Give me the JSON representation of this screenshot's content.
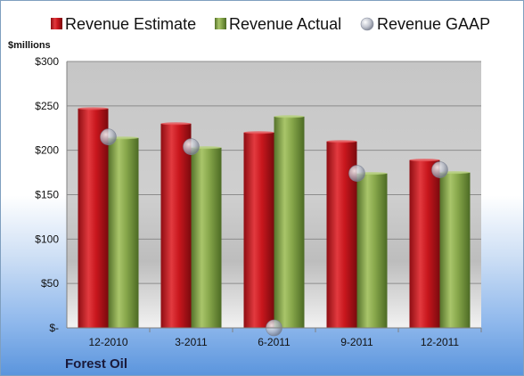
{
  "chart_data": {
    "type": "bar",
    "categories": [
      "12-2010",
      "3-2011",
      "6-2011",
      "9-2011",
      "12-2011"
    ],
    "series": [
      {
        "name": "Revenue Estimate",
        "values": [
          247,
          230,
          220,
          210,
          189
        ],
        "color": "#c0161e",
        "kind": "bar"
      },
      {
        "name": "Revenue Actual",
        "values": [
          214,
          203,
          238,
          174,
          175
        ],
        "color": "#7f9f3f",
        "kind": "bar"
      },
      {
        "name": "Revenue GAAP",
        "values": [
          215,
          204,
          0,
          174,
          178
        ],
        "color": "#a8b0c0",
        "kind": "marker"
      }
    ],
    "ylabel": "$millions",
    "ylim": [
      0,
      300
    ],
    "yticks": [
      0,
      50,
      100,
      150,
      200,
      250,
      300
    ],
    "ytick_labels": [
      "$-",
      "$50",
      "$100",
      "$150",
      "$200",
      "$250",
      "$300"
    ],
    "grid": true,
    "legend_position": "top"
  },
  "company": "Forest Oil",
  "colors": {
    "estimate": "#c0161e",
    "actual": "#7f9f3f",
    "gaap": "#a8b0c0"
  }
}
